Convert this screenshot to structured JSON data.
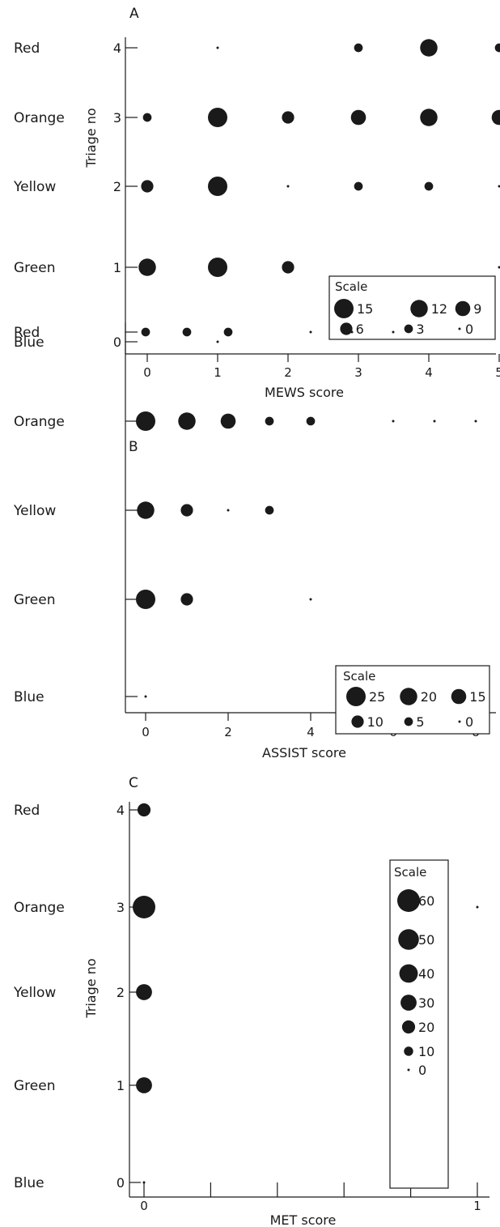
{
  "chart_data": [
    {
      "type": "scatter",
      "panel_label": "A",
      "xlabel": "MEWS score",
      "ylabel": "Triage no",
      "xlim": [
        -0.3,
        7.2
      ],
      "ylim": [
        -0.2,
        4.3
      ],
      "xticks": [
        0,
        1,
        2,
        3,
        4,
        5,
        6,
        7
      ],
      "yticks": [
        0,
        1,
        2,
        3,
        4
      ],
      "show_yticklabels": true,
      "triage_labels": [
        "Blue",
        "Green",
        "Yellow",
        "Orange",
        "Red"
      ],
      "points": [
        {
          "x": 1,
          "y": 4,
          "size": 1
        },
        {
          "x": 3,
          "y": 4,
          "size": 3
        },
        {
          "x": 4,
          "y": 4,
          "size": 12
        },
        {
          "x": 5,
          "y": 4,
          "size": 3
        },
        {
          "x": 6,
          "y": 4,
          "size": 3
        },
        {
          "x": 7,
          "y": 4,
          "size": 1
        },
        {
          "x": 0,
          "y": 3,
          "size": 3
        },
        {
          "x": 1,
          "y": 3,
          "size": 15
        },
        {
          "x": 2,
          "y": 3,
          "size": 6
        },
        {
          "x": 3,
          "y": 3,
          "size": 9
        },
        {
          "x": 4,
          "y": 3,
          "size": 12
        },
        {
          "x": 5,
          "y": 3,
          "size": 9
        },
        {
          "x": 6,
          "y": 3,
          "size": 9
        },
        {
          "x": 7,
          "y": 3,
          "size": 1
        },
        {
          "x": 0,
          "y": 2,
          "size": 6
        },
        {
          "x": 1,
          "y": 2,
          "size": 15
        },
        {
          "x": 2,
          "y": 2,
          "size": 1
        },
        {
          "x": 3,
          "y": 2,
          "size": 3
        },
        {
          "x": 4,
          "y": 2,
          "size": 3
        },
        {
          "x": 5,
          "y": 2,
          "size": 1
        },
        {
          "x": 7,
          "y": 2,
          "size": 1
        },
        {
          "x": 0,
          "y": 1,
          "size": 12
        },
        {
          "x": 1,
          "y": 1,
          "size": 15
        },
        {
          "x": 2,
          "y": 1,
          "size": 6
        },
        {
          "x": 5,
          "y": 1,
          "size": 1
        },
        {
          "x": 1,
          "y": 0,
          "size": 1
        }
      ],
      "legend": {
        "title": "Scale",
        "items": [
          {
            "value": 15,
            "label": "15"
          },
          {
            "value": 12,
            "label": "12"
          },
          {
            "value": 9,
            "label": "9"
          },
          {
            "value": 6,
            "label": "6"
          },
          {
            "value": 3,
            "label": "3"
          },
          {
            "value": 0,
            "label": "0"
          }
        ]
      }
    },
    {
      "type": "scatter",
      "panel_label": "B",
      "xlabel": "ASSIST score",
      "ylabel": "",
      "xlim": [
        -0.3,
        8.3
      ],
      "ylim": [
        -0.2,
        4.3
      ],
      "xticks": [
        0,
        2,
        4,
        6,
        8
      ],
      "yticks": [
        0,
        1,
        2,
        3,
        4
      ],
      "show_yticklabels": false,
      "triage_labels": [
        "Blue",
        "Green",
        "Yellow",
        "Orange",
        "Red"
      ],
      "points": [
        {
          "x": 0,
          "y": 4,
          "size": 5
        },
        {
          "x": 1,
          "y": 4,
          "size": 5
        },
        {
          "x": 2,
          "y": 4,
          "size": 5
        },
        {
          "x": 4,
          "y": 4,
          "size": 1
        },
        {
          "x": 5,
          "y": 4,
          "size": 1
        },
        {
          "x": 6,
          "y": 4,
          "size": 1
        },
        {
          "x": 0,
          "y": 3,
          "size": 25
        },
        {
          "x": 1,
          "y": 3,
          "size": 20
        },
        {
          "x": 2,
          "y": 3,
          "size": 15
        },
        {
          "x": 3,
          "y": 3,
          "size": 5
        },
        {
          "x": 4,
          "y": 3,
          "size": 5
        },
        {
          "x": 6,
          "y": 3,
          "size": 1
        },
        {
          "x": 7,
          "y": 3,
          "size": 1
        },
        {
          "x": 8,
          "y": 3,
          "size": 1
        },
        {
          "x": 0,
          "y": 2,
          "size": 20
        },
        {
          "x": 1,
          "y": 2,
          "size": 10
        },
        {
          "x": 2,
          "y": 2,
          "size": 1
        },
        {
          "x": 3,
          "y": 2,
          "size": 5
        },
        {
          "x": 0,
          "y": 1,
          "size": 25
        },
        {
          "x": 1,
          "y": 1,
          "size": 10
        },
        {
          "x": 4,
          "y": 1,
          "size": 1
        },
        {
          "x": 0,
          "y": 0,
          "size": 1
        }
      ],
      "legend": {
        "title": "Scale",
        "items": [
          {
            "value": 25,
            "label": "25"
          },
          {
            "value": 20,
            "label": "20"
          },
          {
            "value": 15,
            "label": "15"
          },
          {
            "value": 10,
            "label": "10"
          },
          {
            "value": 5,
            "label": "5"
          },
          {
            "value": 0,
            "label": "0"
          }
        ]
      }
    },
    {
      "type": "scatter",
      "panel_label": "C",
      "xlabel": "MET score",
      "ylabel": "Triage no",
      "xlim": [
        -0.05,
        1.05
      ],
      "ylim": [
        -0.2,
        4.3
      ],
      "xticks": [
        0,
        0.2,
        0.4,
        0.6,
        0.8,
        1
      ],
      "xticklabels": [
        "0",
        "",
        "",
        "",
        "",
        "1"
      ],
      "yticks": [
        0,
        1,
        2,
        3,
        4
      ],
      "show_yticklabels": true,
      "triage_labels": [
        "Blue",
        "Green",
        "Yellow",
        "Orange",
        "Red"
      ],
      "points": [
        {
          "x": 0,
          "y": 4,
          "size": 20
        },
        {
          "x": 0,
          "y": 3,
          "size": 60
        },
        {
          "x": 1,
          "y": 3,
          "size": 1
        },
        {
          "x": 0,
          "y": 2,
          "size": 30
        },
        {
          "x": 0,
          "y": 1,
          "size": 30
        },
        {
          "x": 0,
          "y": 0,
          "size": 1
        }
      ],
      "legend": {
        "title": "Scale",
        "items": [
          {
            "value": 60,
            "label": "60"
          },
          {
            "value": 50,
            "label": "50"
          },
          {
            "value": 40,
            "label": "40"
          },
          {
            "value": 30,
            "label": "30"
          },
          {
            "value": 20,
            "label": "20"
          },
          {
            "value": 10,
            "label": "10"
          },
          {
            "value": 0,
            "label": "0"
          }
        ]
      }
    }
  ]
}
